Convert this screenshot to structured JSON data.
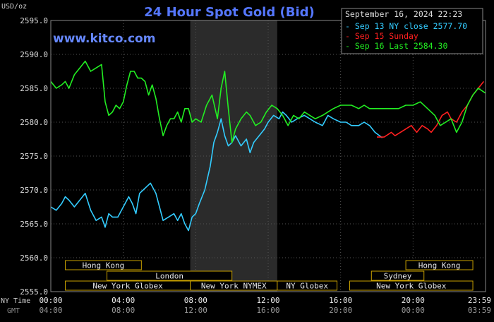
{
  "chart_data": {
    "type": "line",
    "title": "24 Hour Spot Gold (Bid)",
    "watermark": "www.kitco.com",
    "ylabel": "USD/oz",
    "ylim": [
      2555,
      2595
    ],
    "yticks": [
      "2595.0",
      "2590.0",
      "2585.0",
      "2580.0",
      "2575.0",
      "2570.0",
      "2565.0",
      "2560.0",
      "2555.0"
    ],
    "xlim": [
      0,
      24
    ],
    "x_ticks_ny": [
      "00:00",
      "04:00",
      "08:00",
      "12:00",
      "16:00",
      "20:00",
      "23:59"
    ],
    "x_ticks_gmt": [
      "04:00",
      "08:00",
      "12:00",
      "16:00",
      "20:00",
      "00:00",
      "03:59"
    ],
    "x_axis_labels": [
      "NY Time",
      "GMT"
    ],
    "timestamp": "September 16, 2024 22:23",
    "legend": [
      {
        "label": "Sep 13 NY close 2577.70",
        "color": "#33ccff"
      },
      {
        "label": "Sep 15 Sunday",
        "color": "#ff2020"
      },
      {
        "label": "Sep 16 Last 2584.30",
        "color": "#22ee22"
      }
    ],
    "shaded_session": [
      7.7,
      12.5
    ],
    "sessions": [
      {
        "label": "Hong Kong",
        "start": 0.8,
        "end": 5.0,
        "row": 0
      },
      {
        "label": "Hong Kong",
        "start": 19.6,
        "end": 23.3,
        "row": 0
      },
      {
        "label": "London",
        "start": 3.1,
        "end": 10.0,
        "row": 1
      },
      {
        "label": "Sydney",
        "start": 17.7,
        "end": 20.6,
        "row": 1
      },
      {
        "label": "New York Globex",
        "start": 0.8,
        "end": 7.7,
        "row": 2
      },
      {
        "label": "New York NYMEX",
        "start": 7.7,
        "end": 12.5,
        "row": 2
      },
      {
        "label": "NY Globex",
        "start": 12.5,
        "end": 15.8,
        "row": 2
      },
      {
        "label": "New York Globex",
        "start": 16.5,
        "end": 23.3,
        "row": 2
      }
    ],
    "series": [
      {
        "name": "Sep 13 NY close 2577.70",
        "color": "#33ccff",
        "x": [
          0.0,
          0.3,
          0.6,
          0.8,
          1.0,
          1.3,
          1.6,
          1.9,
          2.2,
          2.5,
          2.8,
          3.0,
          3.2,
          3.4,
          3.7,
          4.0,
          4.3,
          4.5,
          4.7,
          4.9,
          5.1,
          5.3,
          5.5,
          5.8,
          6.0,
          6.2,
          6.5,
          6.8,
          7.0,
          7.2,
          7.4,
          7.6,
          7.8,
          8.0,
          8.2,
          8.5,
          8.8,
          9.0,
          9.2,
          9.4,
          9.6,
          9.8,
          10.0,
          10.2,
          10.5,
          10.8,
          11.0,
          11.2,
          11.5,
          11.8,
          12.0,
          12.3,
          12.6,
          12.8,
          13.0,
          13.3,
          13.6,
          14.0,
          14.3,
          14.6,
          15.0,
          15.3,
          15.6,
          16.0,
          16.3,
          16.6,
          17.0,
          17.3,
          17.6,
          17.9,
          18.3
        ],
        "y": [
          2567.5,
          2567.0,
          2568.0,
          2569.0,
          2568.5,
          2567.5,
          2568.5,
          2569.5,
          2567.0,
          2565.5,
          2566.0,
          2564.5,
          2566.5,
          2566.0,
          2566.0,
          2567.5,
          2569.0,
          2568.0,
          2566.5,
          2569.5,
          2570.0,
          2570.5,
          2571.0,
          2569.5,
          2567.5,
          2565.5,
          2566.0,
          2566.5,
          2565.5,
          2566.5,
          2565.0,
          2564.0,
          2566.0,
          2566.5,
          2568.0,
          2570.0,
          2573.5,
          2577.0,
          2578.5,
          2580.5,
          2578.0,
          2576.5,
          2577.0,
          2578.0,
          2576.5,
          2577.5,
          2575.5,
          2577.0,
          2578.0,
          2579.0,
          2580.0,
          2581.0,
          2580.5,
          2581.5,
          2581.0,
          2580.0,
          2580.5,
          2581.0,
          2580.5,
          2580.0,
          2579.5,
          2581.0,
          2580.5,
          2580.0,
          2580.0,
          2579.5,
          2579.5,
          2580.0,
          2579.5,
          2578.5,
          2577.7
        ]
      },
      {
        "name": "Sep 15 Sunday",
        "color": "#ff2020",
        "x": [
          18.0,
          18.4,
          18.8,
          19.0,
          19.3,
          19.6,
          19.9,
          20.2,
          20.5,
          20.8,
          21.0,
          21.3,
          21.6,
          21.9,
          22.1,
          22.4,
          22.7,
          23.0,
          23.3,
          23.6,
          23.9
        ],
        "y": [
          2577.8,
          2577.8,
          2578.5,
          2578.0,
          2578.5,
          2579.0,
          2579.5,
          2578.5,
          2579.5,
          2579.0,
          2578.5,
          2579.5,
          2581.0,
          2581.5,
          2580.5,
          2580.0,
          2581.5,
          2582.5,
          2584.0,
          2585.0,
          2586.0
        ]
      },
      {
        "name": "Sep 16 Last 2584.30",
        "color": "#22ee22",
        "x": [
          0.0,
          0.3,
          0.6,
          0.8,
          1.0,
          1.3,
          1.6,
          1.9,
          2.2,
          2.5,
          2.8,
          3.0,
          3.2,
          3.4,
          3.6,
          3.8,
          4.0,
          4.2,
          4.4,
          4.6,
          4.8,
          5.0,
          5.2,
          5.4,
          5.6,
          5.8,
          6.0,
          6.2,
          6.4,
          6.6,
          6.8,
          7.0,
          7.2,
          7.4,
          7.6,
          7.8,
          8.0,
          8.3,
          8.6,
          8.9,
          9.2,
          9.4,
          9.6,
          9.8,
          10.0,
          10.2,
          10.5,
          10.8,
          11.0,
          11.3,
          11.6,
          11.9,
          12.2,
          12.5,
          12.8,
          13.1,
          13.4,
          13.7,
          14.0,
          14.3,
          14.6,
          15.0,
          15.3,
          15.6,
          16.0,
          16.3,
          16.6,
          17.0,
          17.3,
          17.6,
          18.0,
          18.4,
          18.8,
          19.2,
          19.6,
          20.0,
          20.4,
          20.8,
          21.2,
          21.5,
          21.8,
          22.1,
          22.4,
          22.7,
          23.0,
          23.3,
          23.6,
          23.99
        ],
        "y": [
          2586.0,
          2585.0,
          2585.5,
          2586.0,
          2585.0,
          2587.0,
          2588.0,
          2589.0,
          2587.5,
          2588.0,
          2588.5,
          2583.0,
          2581.0,
          2581.5,
          2582.5,
          2582.0,
          2583.0,
          2585.5,
          2587.5,
          2587.5,
          2586.5,
          2586.5,
          2586.0,
          2584.0,
          2585.5,
          2583.5,
          2580.5,
          2578.0,
          2579.5,
          2580.5,
          2580.5,
          2581.5,
          2580.0,
          2582.0,
          2582.0,
          2580.0,
          2580.5,
          2580.0,
          2582.5,
          2584.0,
          2580.5,
          2585.0,
          2587.5,
          2582.0,
          2577.0,
          2579.0,
          2580.5,
          2581.5,
          2581.0,
          2579.5,
          2580.0,
          2581.5,
          2582.5,
          2582.0,
          2581.0,
          2579.5,
          2581.0,
          2580.5,
          2581.5,
          2581.0,
          2580.5,
          2581.0,
          2581.5,
          2582.0,
          2582.5,
          2582.5,
          2582.5,
          2582.0,
          2582.5,
          2582.0,
          2582.0,
          2582.0,
          2582.0,
          2582.0,
          2582.5,
          2582.5,
          2583.0,
          2582.0,
          2581.0,
          2579.5,
          2580.0,
          2580.5,
          2578.5,
          2580.0,
          2582.5,
          2584.0,
          2585.0,
          2584.3
        ]
      }
    ]
  }
}
